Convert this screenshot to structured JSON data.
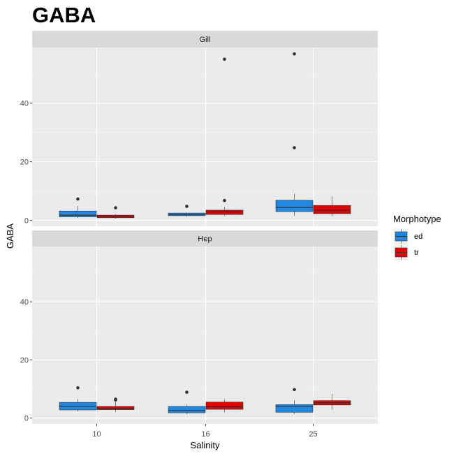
{
  "chart_data": {
    "type": "boxplot",
    "title": "GABA",
    "xlabel": "Salinity",
    "ylabel": "GABA",
    "categories": [
      "10",
      "16",
      "25"
    ],
    "y_ticks": [
      0,
      20,
      40
    ],
    "ylim": [
      -2,
      59
    ],
    "grid": true,
    "legend": {
      "title": "Morphotype",
      "position": "right",
      "entries": [
        {
          "label": "ed",
          "color": "#1E88E5"
        },
        {
          "label": "tr",
          "color": "#E50000"
        }
      ]
    },
    "panels": [
      {
        "strip": "Gill",
        "groups": [
          {
            "salinity": "10",
            "morphotype": "ed",
            "min": 0.8,
            "q1": 1.2,
            "median": 1.8,
            "q3": 3.2,
            "max": 4.9,
            "outliers": [
              7.3
            ]
          },
          {
            "salinity": "10",
            "morphotype": "tr",
            "min": 0.6,
            "q1": 0.9,
            "median": 1.3,
            "q3": 1.8,
            "max": 2.2,
            "outliers": [
              4.3
            ]
          },
          {
            "salinity": "16",
            "morphotype": "ed",
            "min": 1.2,
            "q1": 1.6,
            "median": 2.0,
            "q3": 2.5,
            "max": 2.7,
            "outliers": [
              4.8
            ]
          },
          {
            "salinity": "16",
            "morphotype": "tr",
            "min": 1.4,
            "q1": 2.0,
            "median": 2.9,
            "q3": 3.5,
            "max": 4.6,
            "outliers": [
              55.0,
              6.8
            ]
          },
          {
            "salinity": "25",
            "morphotype": "ed",
            "min": 1.5,
            "q1": 3.0,
            "median": 4.4,
            "q3": 6.9,
            "max": 9.0,
            "outliers": [
              56.8,
              24.8
            ]
          },
          {
            "salinity": "25",
            "morphotype": "tr",
            "min": 1.4,
            "q1": 2.3,
            "median": 3.5,
            "q3": 5.1,
            "max": 8.3,
            "outliers": []
          }
        ]
      },
      {
        "strip": "Hep",
        "groups": [
          {
            "salinity": "10",
            "morphotype": "ed",
            "min": 2.3,
            "q1": 2.8,
            "median": 4.1,
            "q3": 5.4,
            "max": 6.6,
            "outliers": [
              10.4
            ]
          },
          {
            "salinity": "10",
            "morphotype": "tr",
            "min": 2.1,
            "q1": 2.9,
            "median": 3.3,
            "q3": 4.0,
            "max": 5.5,
            "outliers": [
              6.2,
              6.5
            ]
          },
          {
            "salinity": "16",
            "morphotype": "ed",
            "min": 1.3,
            "q1": 1.8,
            "median": 2.6,
            "q3": 4.0,
            "max": 4.6,
            "outliers": [
              8.9
            ]
          },
          {
            "salinity": "16",
            "morphotype": "tr",
            "min": 1.9,
            "q1": 3.0,
            "median": 3.9,
            "q3": 5.5,
            "max": 6.4,
            "outliers": []
          },
          {
            "salinity": "25",
            "morphotype": "ed",
            "min": 1.3,
            "q1": 2.0,
            "median": 4.1,
            "q3": 4.6,
            "max": 6.2,
            "outliers": [
              9.8
            ]
          },
          {
            "salinity": "25",
            "morphotype": "tr",
            "min": 2.8,
            "q1": 4.5,
            "median": 5.3,
            "q3": 6.0,
            "max": 8.4,
            "outliers": []
          }
        ]
      }
    ]
  }
}
